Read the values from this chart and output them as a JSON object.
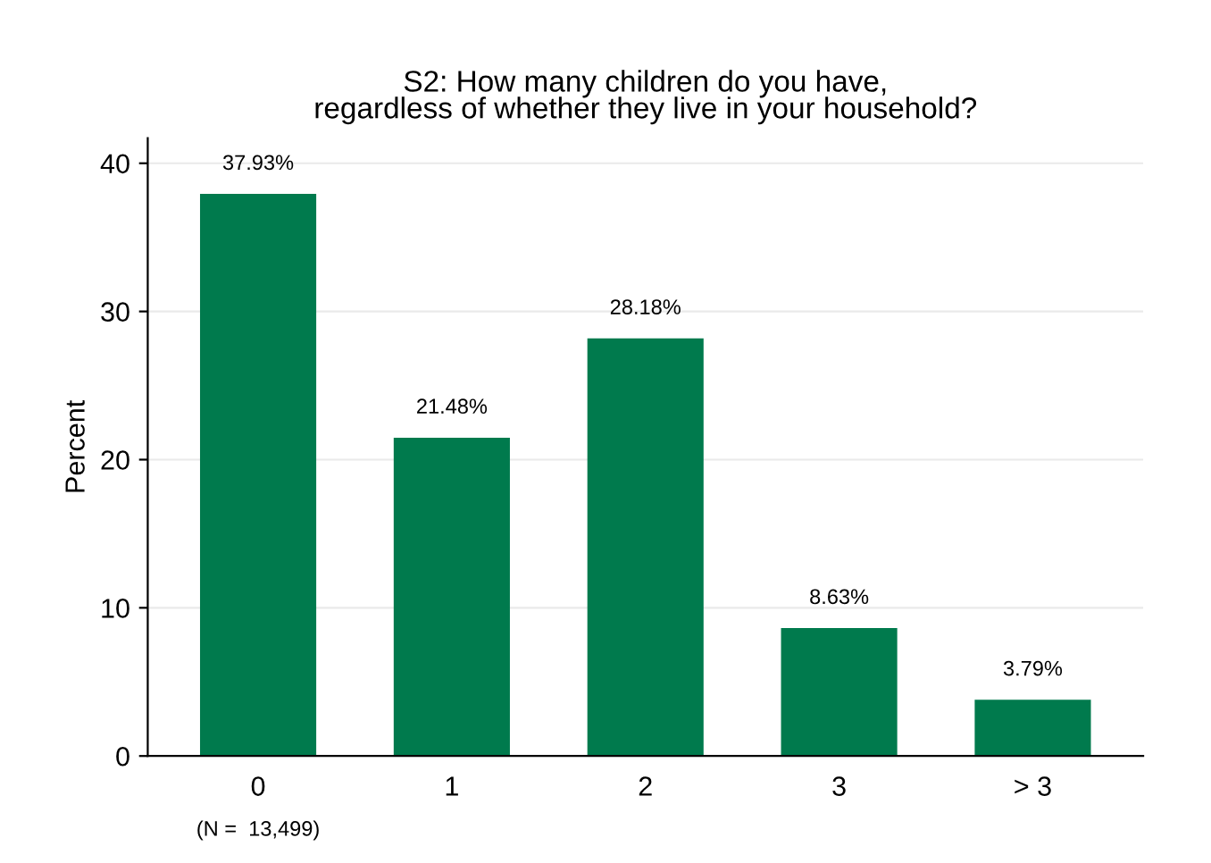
{
  "chart_data": {
    "type": "bar",
    "title": "S2: How many children do you have,\nregardless of whether they live in your household?",
    "ylabel": "Percent",
    "categories": [
      "0",
      "1",
      "2",
      "3",
      "> 3"
    ],
    "values": [
      37.93,
      21.48,
      28.18,
      8.63,
      3.79
    ],
    "value_labels": [
      "37.93%",
      "21.48%",
      "28.18%",
      "8.63%",
      "3.79%"
    ],
    "color": "#007a4d",
    "ylim": [
      0,
      41.7
    ],
    "yticks": [
      0,
      10,
      20,
      30,
      40
    ],
    "grid": "y",
    "annotations": [
      "(N =  13,499)"
    ]
  }
}
